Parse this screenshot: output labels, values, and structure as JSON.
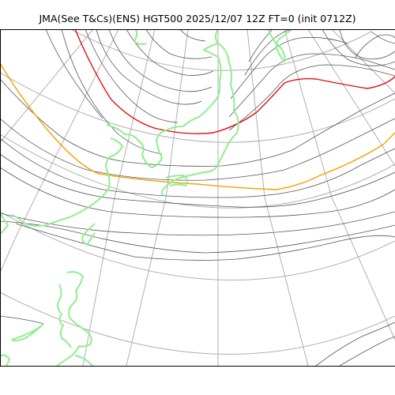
{
  "map": {
    "title": "JMA(See T&Cs)(ENS) HGT500 2025/12/07 12Z FT=0 (init 0712Z)",
    "colors": {
      "background": "#ffffff",
      "graticule": "#b0b0b0",
      "contour": "#555555",
      "contour_highlight_red": "#e01010",
      "contour_highlight_orange": "#f5a000",
      "coastline": "#90ee90",
      "frame": "#000000"
    },
    "layers": [
      "graticule",
      "height-contours",
      "highlight-contour-red",
      "highlight-contour-orange",
      "coastlines"
    ]
  }
}
